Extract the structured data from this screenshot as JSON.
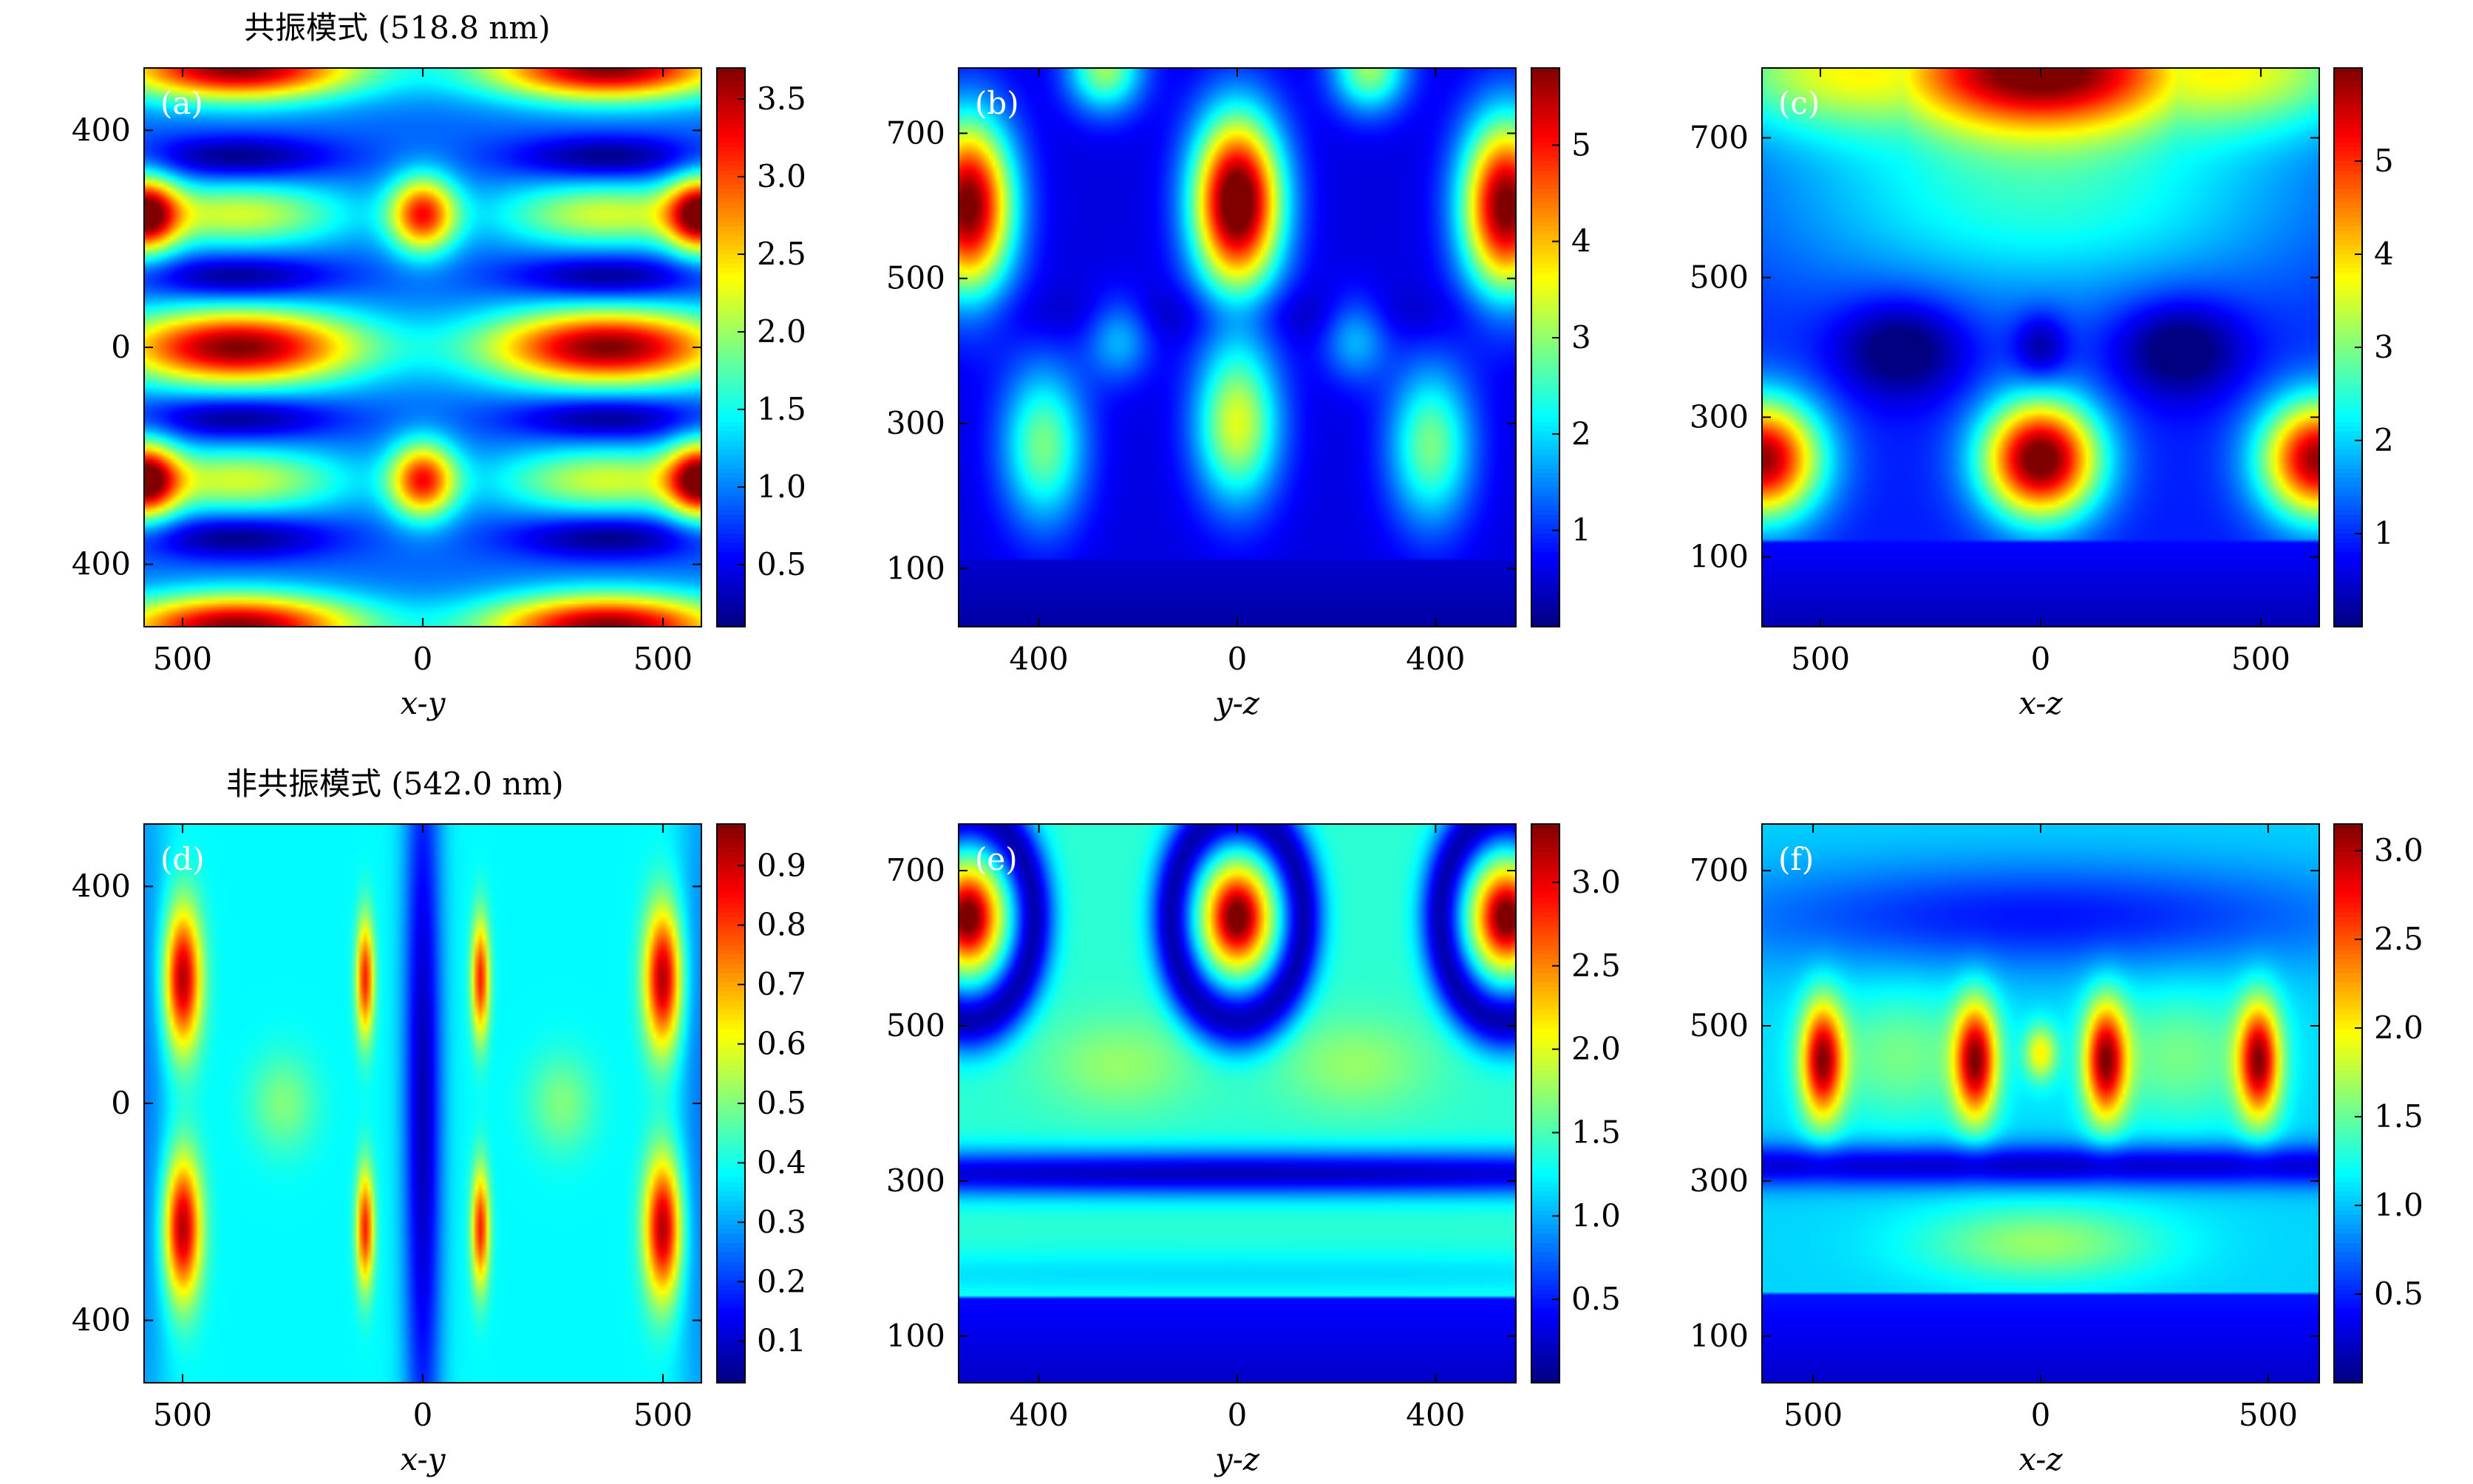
{
  "row_titles": [
    "共振模式 (518.8 nm)",
    "非共振模式 (542.0 nm)"
  ],
  "chart_data": [
    {
      "type": "heatmap",
      "panel_label": "(a)",
      "xlabel": "x-y",
      "xticks": [
        {
          "value": -500,
          "label": "500"
        },
        {
          "value": 0,
          "label": "0"
        },
        {
          "value": 500,
          "label": "500"
        }
      ],
      "yticks": [
        {
          "value": 400,
          "label": "400"
        },
        {
          "value": 0,
          "label": "0"
        },
        {
          "value": -400,
          "label": "400"
        }
      ],
      "xlim": [
        -580,
        580
      ],
      "ylim": [
        -515,
        515
      ],
      "colorbar": {
        "min": 0.1,
        "max": 3.7,
        "ticks": [
          "0.5",
          "1.0",
          "1.5",
          "2.0",
          "2.5",
          "3.0",
          "3.5"
        ]
      },
      "colormap": "jet",
      "field": {
        "model": "cavity-xy",
        "peak": 3.7,
        "centers": [
          [
            -385,
            0
          ],
          [
            385,
            0
          ]
        ],
        "edge_rows": [
          -515,
          515
        ],
        "side_spots": [
          [
            0,
            245
          ],
          [
            0,
            -245
          ]
        ]
      }
    },
    {
      "type": "heatmap",
      "panel_label": "(b)",
      "xlabel": "y-z",
      "xticks": [
        {
          "value": -420,
          "label": "400"
        },
        {
          "value": 0,
          "label": "0"
        },
        {
          "value": 420,
          "label": "400"
        }
      ],
      "yticks": [
        {
          "value": 700,
          "label": "700"
        },
        {
          "value": 500,
          "label": "500"
        },
        {
          "value": 300,
          "label": "300"
        },
        {
          "value": 100,
          "label": "100"
        }
      ],
      "xlim": [
        -590,
        590
      ],
      "ylim": [
        20,
        790
      ],
      "colorbar": {
        "min": 0.0,
        "max": 5.8,
        "ticks": [
          "1",
          "2",
          "3",
          "4",
          "5"
        ]
      },
      "colormap": "jet",
      "field": {
        "model": "cavity-yz",
        "upper_peaks": [
          [
            -570,
            600,
            5.4
          ],
          [
            0,
            605,
            5.8
          ],
          [
            570,
            600,
            5.4
          ]
        ],
        "lower_peaks": [
          [
            -410,
            270,
            2.3
          ],
          [
            0,
            300,
            2.9
          ],
          [
            410,
            270,
            2.3
          ]
        ],
        "substrate_top": 110
      }
    },
    {
      "type": "heatmap",
      "panel_label": "(c)",
      "xlabel": "x-z",
      "xticks": [
        {
          "value": -490,
          "label": "500"
        },
        {
          "value": 0,
          "label": "0"
        },
        {
          "value": 490,
          "label": "500"
        }
      ],
      "yticks": [
        {
          "value": 700,
          "label": "700"
        },
        {
          "value": 500,
          "label": "500"
        },
        {
          "value": 300,
          "label": "300"
        },
        {
          "value": 100,
          "label": "100"
        }
      ],
      "xlim": [
        -620,
        620
      ],
      "ylim": [
        0,
        800
      ],
      "colorbar": {
        "min": 0.0,
        "max": 6.0,
        "ticks": [
          "1",
          "2",
          "3",
          "4",
          "5"
        ]
      },
      "colormap": "jet",
      "field": {
        "model": "arches-xz",
        "top_peak": 6.0,
        "lower_peaks": [
          [
            -620,
            240,
            5.0
          ],
          [
            0,
            240,
            5.4
          ],
          [
            620,
            240,
            5.0
          ]
        ],
        "substrate_top": 125
      }
    },
    {
      "type": "heatmap",
      "panel_label": "(d)",
      "xlabel": "x-y",
      "xticks": [
        {
          "value": -500,
          "label": "500"
        },
        {
          "value": 0,
          "label": "0"
        },
        {
          "value": 500,
          "label": "500"
        }
      ],
      "yticks": [
        {
          "value": 400,
          "label": "400"
        },
        {
          "value": 0,
          "label": "0"
        },
        {
          "value": -400,
          "label": "400"
        }
      ],
      "xlim": [
        -580,
        580
      ],
      "ylim": [
        -515,
        515
      ],
      "colorbar": {
        "min": 0.03,
        "max": 0.97,
        "ticks": [
          "0.1",
          "0.2",
          "0.3",
          "0.4",
          "0.5",
          "0.6",
          "0.7",
          "0.8",
          "0.9"
        ]
      },
      "colormap": "jet",
      "field": {
        "model": "lenses-xy",
        "outer_lenses_x": [
          -500,
          500
        ],
        "inner_lenses_x": [
          -120,
          120
        ],
        "lens_rows_y": [
          230,
          -230
        ],
        "peak": 0.95,
        "background": 0.38
      }
    },
    {
      "type": "heatmap",
      "panel_label": "(e)",
      "xlabel": "y-z",
      "xticks": [
        {
          "value": -420,
          "label": "400"
        },
        {
          "value": 0,
          "label": "0"
        },
        {
          "value": 420,
          "label": "400"
        }
      ],
      "yticks": [
        {
          "value": 700,
          "label": "700"
        },
        {
          "value": 500,
          "label": "500"
        },
        {
          "value": 300,
          "label": "300"
        },
        {
          "value": 100,
          "label": "100"
        }
      ],
      "xlim": [
        -590,
        590
      ],
      "ylim": [
        40,
        760
      ],
      "colorbar": {
        "min": 0.0,
        "max": 3.35,
        "ticks": [
          "0.5",
          "1.0",
          "1.5",
          "2.0",
          "2.5",
          "3.0"
        ]
      },
      "colormap": "jet",
      "field": {
        "model": "rings-yz",
        "ring_centers": [
          [
            -570,
            640
          ],
          [
            0,
            640
          ],
          [
            570,
            640
          ]
        ],
        "peak": 3.35,
        "dark_band_z": 310,
        "substrate_top": 150
      }
    },
    {
      "type": "heatmap",
      "panel_label": "(f)",
      "xlabel": "x-z",
      "xticks": [
        {
          "value": -490,
          "label": "500"
        },
        {
          "value": 0,
          "label": "0"
        },
        {
          "value": 490,
          "label": "500"
        }
      ],
      "yticks": [
        {
          "value": 700,
          "label": "700"
        },
        {
          "value": 500,
          "label": "500"
        },
        {
          "value": 300,
          "label": "300"
        },
        {
          "value": 100,
          "label": "100"
        }
      ],
      "xlim": [
        -600,
        600
      ],
      "ylim": [
        40,
        760
      ],
      "colorbar": {
        "min": 0.0,
        "max": 3.15,
        "ticks": [
          "0.5",
          "1.0",
          "1.5",
          "2.0",
          "2.5",
          "3.0"
        ]
      },
      "colormap": "jet",
      "field": {
        "model": "wedges-xz",
        "wedge_x": [
          -490,
          -120,
          120,
          490
        ],
        "wedge_z": 455,
        "peak": 3.1,
        "dark_band_z": 320,
        "substrate_top": 155
      }
    }
  ]
}
